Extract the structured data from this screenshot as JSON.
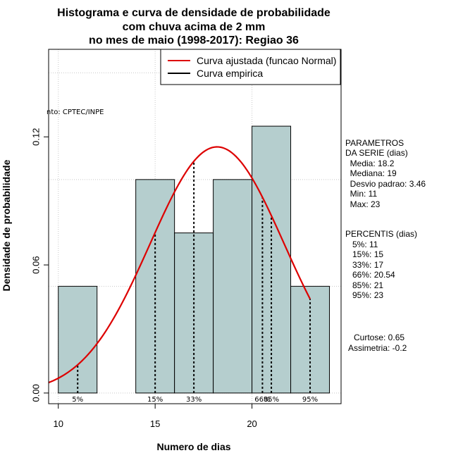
{
  "chart_data": {
    "type": "bar",
    "title": [
      "Histograma e curva de densidade de probabilidade",
      "com chuva acima de 2 mm",
      "no mes de maio (1998-2017): Regiao 36"
    ],
    "xlabel": "Numero de dias",
    "ylabel": "Densidade de probabilidade",
    "xlim": [
      9.5,
      24.6
    ],
    "ylim": [
      -0.005,
      0.161
    ],
    "xticks": [
      10,
      15,
      20
    ],
    "yticks": [
      0.0,
      0.06,
      0.12
    ],
    "ytick_labels": [
      "0.00",
      "0.06",
      "0.12"
    ],
    "bins": [
      {
        "x0": 10,
        "x1": 12,
        "density": 0.05
      },
      {
        "x0": 12,
        "x1": 14,
        "density": 0.0
      },
      {
        "x0": 14,
        "x1": 16,
        "density": 0.1
      },
      {
        "x0": 16,
        "x1": 18,
        "density": 0.075
      },
      {
        "x0": 18,
        "x1": 20,
        "density": 0.1
      },
      {
        "x0": 20,
        "x1": 22,
        "density": 0.125
      },
      {
        "x0": 22,
        "x1": 24,
        "density": 0.05
      }
    ],
    "bar_color": "#b5cece",
    "normal_curve": {
      "mean": 18.2,
      "sd": 3.46,
      "x_from": 9.5,
      "x_to": 23,
      "color": "#dd0000"
    },
    "percentile_lines": [
      {
        "x": 11,
        "label": "5%"
      },
      {
        "x": 15,
        "label": "15%"
      },
      {
        "x": 17,
        "label": "33%"
      },
      {
        "x": 20.54,
        "label": "66%"
      },
      {
        "x": 21,
        "label": "85%"
      },
      {
        "x": 23,
        "label": "95%"
      }
    ],
    "legend": [
      {
        "label": "Curva ajustada (funcao Normal)",
        "color": "#dd0000"
      },
      {
        "label": "Curva empirica",
        "color": "#000000"
      }
    ],
    "source_note": "nto: CPTEC/INPE",
    "grid": true
  },
  "side_panel": {
    "parametros": [
      "PARAMETROS",
      "DA SERIE (dias)",
      "  Media: 18.2",
      "  Mediana: 19",
      "  Desvio padrao: 3.46",
      "  Min: 11",
      "  Max: 23"
    ],
    "percentis": [
      "PERCENTIS (dias)",
      "   5%: 11",
      "   15%: 15",
      "   33%: 17",
      "   66%: 20.54",
      "   85%: 21",
      "   95%: 23"
    ],
    "curtose": "Curtose: 0.65",
    "assimetria": "Assimetria: -0.2"
  }
}
